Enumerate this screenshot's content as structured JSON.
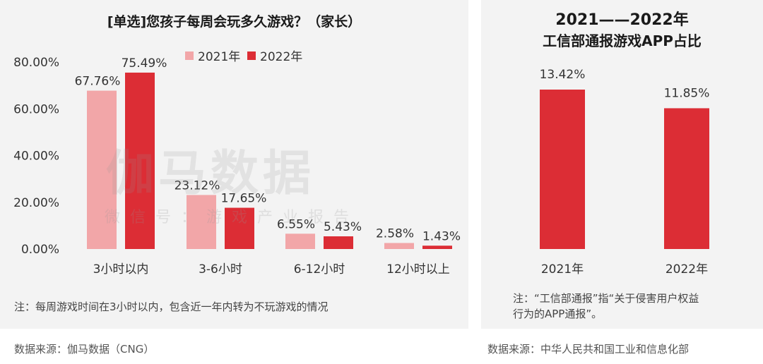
{
  "left_chart": {
    "title": "[单选]您孩子每周会玩多久游戏？（家长）",
    "note": "注：每周游戏时间在3小时以内，包含近一年内转为不玩游戏的情况",
    "source": "数据来源：伽马数据（CNG）",
    "watermark_main": "伽马数据",
    "watermark_sub": "微信号：游戏产业报告",
    "legend": [
      "2021年",
      "2022年"
    ]
  },
  "right_chart": {
    "title_line1": "2021——2022年",
    "title_line2": "工信部通报游戏APP占比",
    "note_line1": "注：“工信部通报”指“关于侵害用户权益",
    "note_line2": "行为的APP通报”。",
    "source": "数据来源：中华人民共和国工业和信息化部"
  },
  "colors": {
    "2021": "#f2a6a8",
    "2022": "#dc2d35"
  },
  "chart_data": [
    {
      "type": "bar",
      "title": "[单选]您孩子每周会玩多久游戏？（家长）",
      "categories": [
        "3小时以内",
        "3-6小时",
        "6-12小时",
        "12小时以上"
      ],
      "series": [
        {
          "name": "2021年",
          "values": [
            67.76,
            23.12,
            6.55,
            2.58
          ],
          "labels": [
            "67.76%",
            "23.12%",
            "6.55%",
            "2.58%"
          ]
        },
        {
          "name": "2022年",
          "values": [
            75.49,
            17.65,
            5.43,
            1.43
          ],
          "labels": [
            "75.49%",
            "17.65%",
            "5.43%",
            "1.43%"
          ]
        }
      ],
      "yticks": [
        "0.00%",
        "20.00%",
        "40.00%",
        "60.00%",
        "80.00%"
      ],
      "ylim": [
        0,
        80
      ],
      "legend_position": "top"
    },
    {
      "type": "bar",
      "title": "2021——2022年 工信部通报游戏APP占比",
      "categories": [
        "2021年",
        "2022年"
      ],
      "values": [
        13.42,
        11.85
      ],
      "labels": [
        "13.42%",
        "11.85%"
      ],
      "ylim": [
        0,
        14
      ]
    }
  ]
}
